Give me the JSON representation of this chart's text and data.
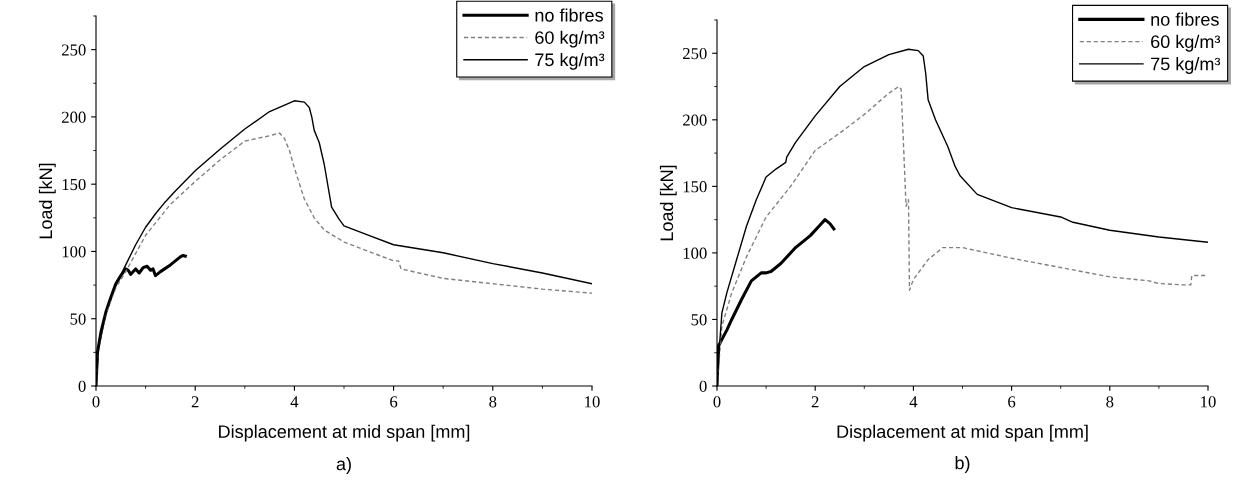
{
  "chart_data": [
    {
      "type": "line",
      "title": "a)",
      "xlabel": "Displacement at mid span [mm]",
      "ylabel": "Load [kN]",
      "xlim": [
        0,
        10
      ],
      "ylim": [
        0,
        275
      ],
      "xticks": [
        0,
        2,
        4,
        6,
        8,
        10
      ],
      "yticks": [
        0,
        50,
        100,
        150,
        200,
        250
      ],
      "grid": false,
      "legend": "top right",
      "series": [
        {
          "name": "no fibres",
          "color": "#000000",
          "line_style": "solid",
          "x": [
            0,
            0.03,
            0.1,
            0.2,
            0.3,
            0.4,
            0.5,
            0.6,
            0.65,
            0.7,
            0.8,
            0.87,
            0.95,
            1.03,
            1.1,
            1.15,
            1.2,
            1.3,
            1.5,
            1.7,
            1.75,
            1.8
          ],
          "values": [
            0,
            25,
            40,
            55,
            66,
            76,
            82,
            87,
            86,
            83,
            87,
            84,
            88,
            89,
            86,
            87,
            82,
            85,
            90,
            96,
            97,
            96.5
          ]
        },
        {
          "name": "60 kg/m³",
          "color": "#808080",
          "line_style": "dashed",
          "x": [
            0,
            0.05,
            0.2,
            0.4,
            0.6,
            1,
            1.5,
            2,
            2.5,
            3,
            3.5,
            3.7,
            3.8,
            3.9,
            4,
            4.2,
            4.4,
            4.6,
            5,
            5.5,
            6,
            6.1,
            6.15,
            7,
            8,
            9,
            10
          ],
          "values": [
            0,
            27,
            54,
            73,
            85,
            112,
            135,
            152,
            168,
            182,
            186,
            188,
            184,
            175,
            162,
            139,
            125,
            116,
            107,
            100,
            93,
            93,
            87,
            80,
            76,
            72,
            69
          ]
        },
        {
          "name": "75 kg/m³",
          "color": "#000000",
          "line_style": "solid",
          "x": [
            0,
            0.05,
            0.2,
            0.4,
            0.6,
            0.8,
            1,
            1.2,
            1.4,
            1.6,
            2,
            2.5,
            3,
            3.5,
            4,
            4.2,
            4.3,
            4.35,
            4.4,
            4.5,
            4.6,
            4.75,
            4.9,
            5,
            5.5,
            6,
            7,
            8,
            9,
            10
          ],
          "values": [
            0,
            28,
            55,
            75,
            90,
            105,
            118,
            128,
            137,
            145,
            160,
            176,
            191,
            204,
            212,
            211,
            207,
            200,
            190,
            181,
            165,
            133,
            124,
            119,
            112,
            105,
            99,
            91,
            84,
            76
          ]
        }
      ]
    },
    {
      "type": "line",
      "title": "b)",
      "xlabel": "Displacement at mid span [mm]",
      "ylabel": "Load [kN]",
      "xlim": [
        0,
        10
      ],
      "ylim": [
        0,
        275
      ],
      "xticks": [
        0,
        2,
        4,
        6,
        8,
        10
      ],
      "yticks": [
        0,
        50,
        100,
        150,
        200,
        250
      ],
      "grid": false,
      "legend": "top right",
      "series": [
        {
          "name": "no fibres",
          "color": "#000000",
          "line_style": "solid",
          "x": [
            0,
            0.03,
            0.1,
            0.2,
            0.3,
            0.5,
            0.7,
            0.8,
            0.9,
            1,
            1.1,
            1.3,
            1.6,
            1.9,
            2.1,
            2.2,
            2.3,
            2.38
          ],
          "values": [
            0,
            30,
            35,
            42,
            50,
            65,
            79,
            82,
            85,
            85,
            86,
            92,
            104,
            113,
            121,
            125,
            122,
            118
          ]
        },
        {
          "name": "60 kg/m³",
          "color": "#808080",
          "line_style": "dashed",
          "x": [
            0,
            0.1,
            0.3,
            0.6,
            1,
            1.5,
            2,
            2.5,
            3,
            3.5,
            3.7,
            3.75,
            3.8,
            3.85,
            3.9,
            3.92,
            4,
            4.3,
            4.6,
            5,
            5.5,
            6,
            7,
            8,
            8.8,
            9,
            9.5,
            9.65,
            9.67,
            10
          ],
          "values": [
            0,
            45,
            70,
            97,
            127,
            150,
            177,
            190,
            204,
            220,
            225,
            223,
            180,
            135,
            140,
            72,
            80,
            95,
            104,
            104,
            100,
            96,
            89,
            82,
            79,
            77,
            76,
            76,
            83,
            83
          ]
        },
        {
          "name": "75 kg/m³",
          "color": "#000000",
          "line_style": "solid",
          "x": [
            0,
            0.05,
            0.1,
            0.2,
            0.4,
            0.6,
            0.8,
            1,
            1.2,
            1.4,
            1.42,
            1.6,
            2,
            2.5,
            3,
            3.5,
            3.9,
            4.1,
            4.2,
            4.25,
            4.3,
            4.45,
            4.7,
            4.85,
            4.95,
            5.3,
            6,
            7,
            7.25,
            8,
            9,
            10
          ],
          "values": [
            0,
            30,
            55,
            70,
            95,
            120,
            140,
            157,
            163,
            168,
            172,
            183,
            203,
            225,
            240,
            249,
            253,
            252,
            248,
            235,
            215,
            200,
            180,
            165,
            158,
            144,
            134,
            127,
            123,
            117,
            112,
            108
          ]
        }
      ]
    }
  ]
}
